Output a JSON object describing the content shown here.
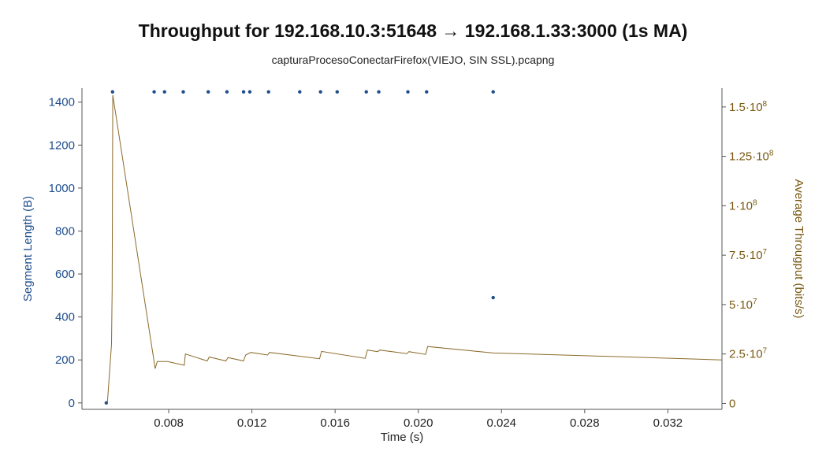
{
  "chart_data": {
    "type": "scatter",
    "title": "Throughput for 192.168.10.3:51648 → 192.168.1.33:3000 (1s MA)",
    "subtitle": "capturaProcesoConectarFirefox(VIEJO, SIN SSL).pcapng",
    "xlabel": "Time (s)",
    "ylabel": "Segment Length (B)",
    "y2label": "Average Througput (bits/s)",
    "xlim": [
      0.00383,
      0.0346
    ],
    "ylim": [
      -30,
      1465
    ],
    "y2lim": [
      -3000000.0,
      159500000.0
    ],
    "x_ticks": [
      {
        "value": 0.008,
        "label": "0.008"
      },
      {
        "value": 0.012,
        "label": "0.012"
      },
      {
        "value": 0.016,
        "label": "0.016"
      },
      {
        "value": 0.02,
        "label": "0.020"
      },
      {
        "value": 0.024,
        "label": "0.024"
      },
      {
        "value": 0.028,
        "label": "0.028"
      },
      {
        "value": 0.032,
        "label": "0.032"
      }
    ],
    "y_ticks": [
      {
        "value": 0,
        "label": "0"
      },
      {
        "value": 200,
        "label": "200"
      },
      {
        "value": 400,
        "label": "400"
      },
      {
        "value": 600,
        "label": "600"
      },
      {
        "value": 800,
        "label": "800"
      },
      {
        "value": 1000,
        "label": "1000"
      },
      {
        "value": 1200,
        "label": "1200"
      },
      {
        "value": 1400,
        "label": "1400"
      }
    ],
    "y2_ticks": [
      {
        "value": 0,
        "base": "0",
        "exp": ""
      },
      {
        "value": 25000000,
        "base": "2.5·10",
        "exp": "7"
      },
      {
        "value": 50000000,
        "base": "5·10",
        "exp": "7"
      },
      {
        "value": 75000000,
        "base": "7.5·10",
        "exp": "7"
      },
      {
        "value": 100000000,
        "base": "1·10",
        "exp": "8"
      },
      {
        "value": 125000000,
        "base": "1.25·10",
        "exp": "8"
      },
      {
        "value": 150000000,
        "base": "1.5·10",
        "exp": "8"
      }
    ],
    "colors": {
      "segment": "#1f4e8c",
      "throughput": "#8b6a2a",
      "axis": "#555555"
    },
    "series": [
      {
        "type": "scatter",
        "axis": "left",
        "points": [
          [
            0.005,
            0
          ],
          [
            0.0053,
            1448
          ],
          [
            0.0073,
            1448
          ],
          [
            0.0078,
            1448
          ],
          [
            0.0087,
            1448
          ],
          [
            0.0099,
            1448
          ],
          [
            0.0108,
            1448
          ],
          [
            0.0116,
            1448
          ],
          [
            0.0119,
            1448
          ],
          [
            0.0128,
            1448
          ],
          [
            0.0143,
            1448
          ],
          [
            0.0153,
            1448
          ],
          [
            0.0161,
            1448
          ],
          [
            0.0175,
            1448
          ],
          [
            0.0181,
            1448
          ],
          [
            0.0195,
            1448
          ],
          [
            0.0204,
            1448
          ],
          [
            0.0236,
            1448
          ],
          [
            0.0236,
            490
          ]
        ]
      },
      {
        "type": "line",
        "axis": "right",
        "points": [
          [
            0.00505,
            0
          ],
          [
            0.00525,
            30000000.0
          ],
          [
            0.00528,
            58000000.0
          ],
          [
            0.00531,
            156000000.0
          ],
          [
            0.00735,
            17600000.0
          ],
          [
            0.00745,
            21200000.0
          ],
          [
            0.00795,
            21200000.0
          ],
          [
            0.00875,
            19300000.0
          ],
          [
            0.0088,
            25000000.0
          ],
          [
            0.00985,
            21500000.0
          ],
          [
            0.00995,
            23500000.0
          ],
          [
            0.01075,
            21500000.0
          ],
          [
            0.01085,
            23200000.0
          ],
          [
            0.0116,
            21500000.0
          ],
          [
            0.0117,
            24500000.0
          ],
          [
            0.01195,
            25800000.0
          ],
          [
            0.01275,
            24500000.0
          ],
          [
            0.01285,
            25800000.0
          ],
          [
            0.01525,
            22600000.0
          ],
          [
            0.01535,
            26300000.0
          ],
          [
            0.01745,
            22800000.0
          ],
          [
            0.01755,
            27000000.0
          ],
          [
            0.01805,
            26200000.0
          ],
          [
            0.01815,
            27000000.0
          ],
          [
            0.01945,
            25200000.0
          ],
          [
            0.01955,
            26200000.0
          ],
          [
            0.02035,
            24800000.0
          ],
          [
            0.02045,
            28800000.0
          ],
          [
            0.0236,
            25500000.0
          ],
          [
            0.0285,
            24000000.0
          ],
          [
            0.0346,
            22000000.0
          ]
        ]
      }
    ],
    "grid": false,
    "legend": "none"
  }
}
